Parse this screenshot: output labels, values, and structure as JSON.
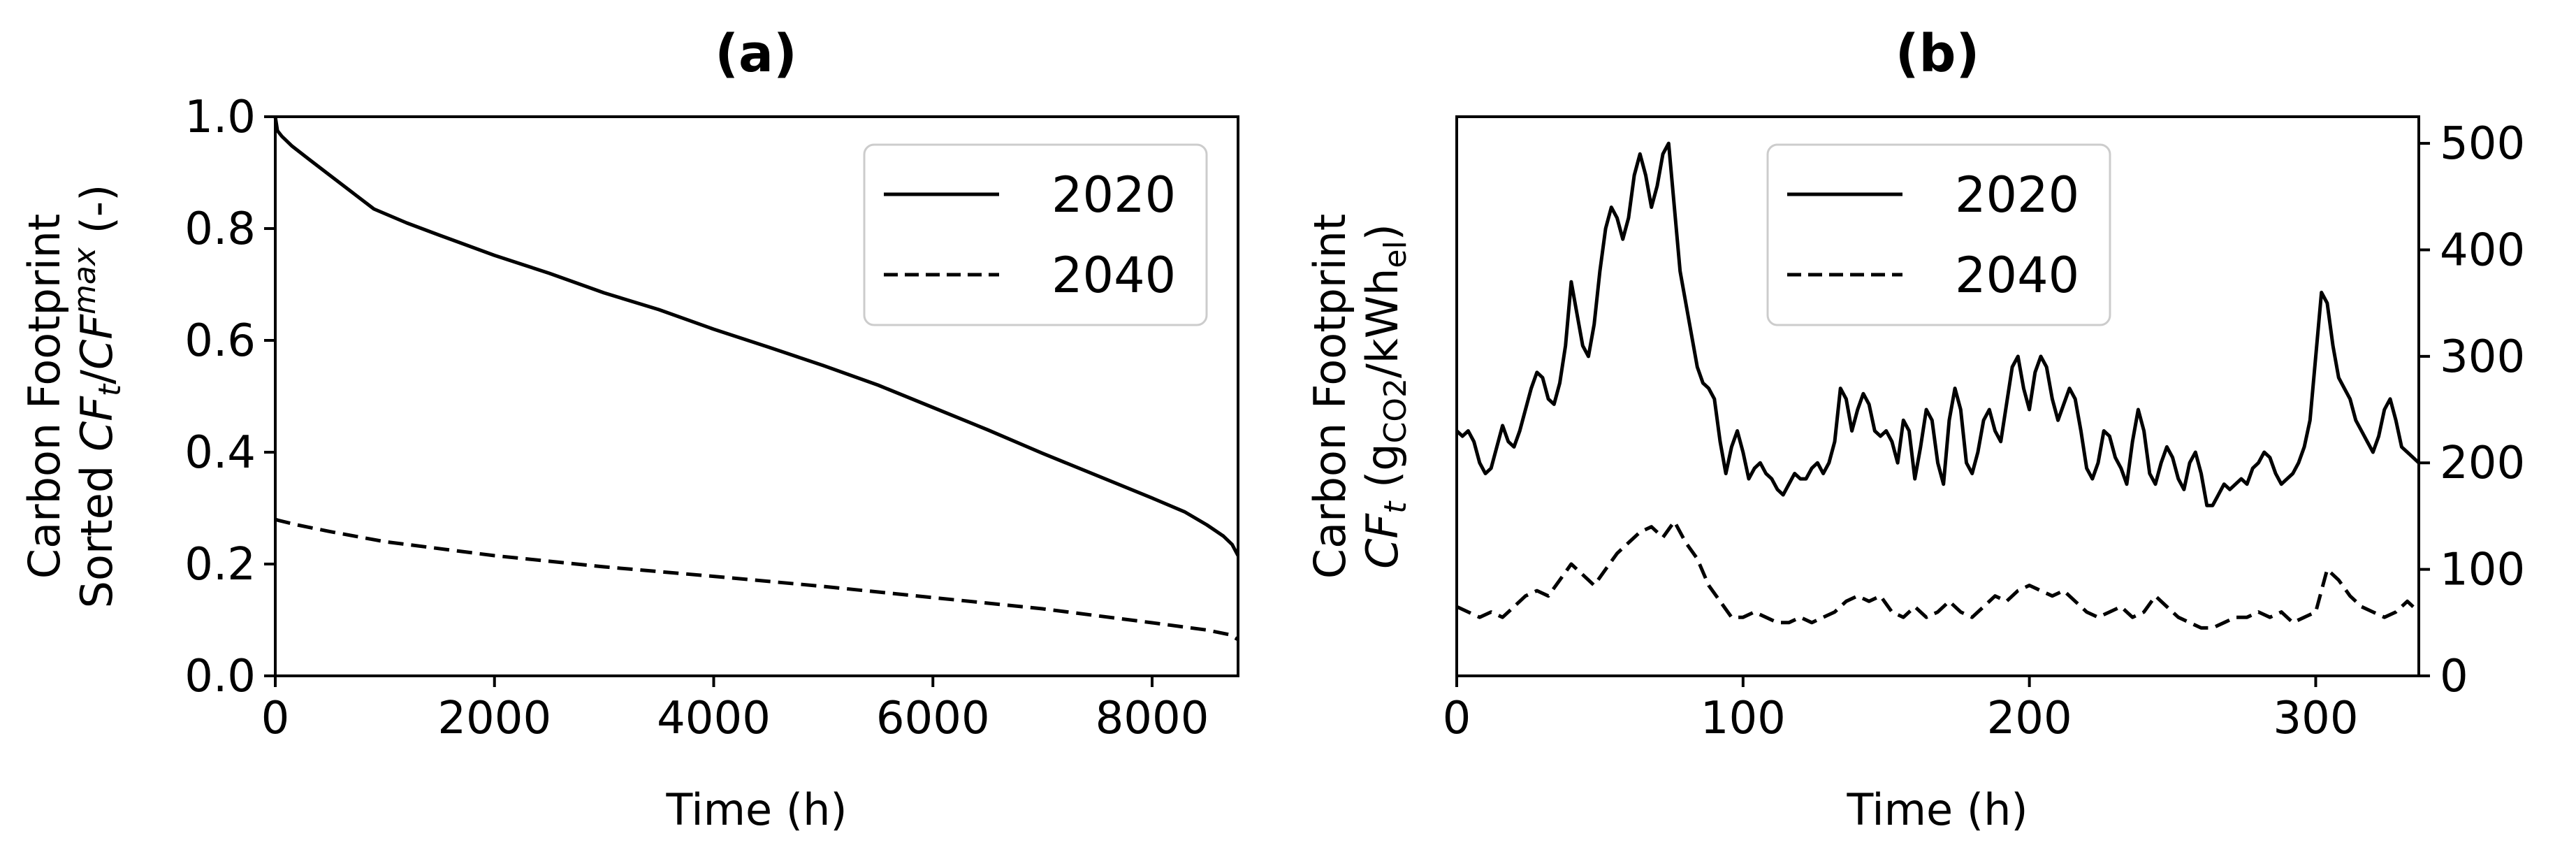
{
  "chart_data": [
    {
      "type": "line",
      "title": "(a)",
      "xlabel": "Time (h)",
      "ylabel_line1": "Carbon Footprint",
      "ylabel_line2": {
        "prefix": "Sorted ",
        "main1": "CF",
        "sub": "t",
        "sep": "/",
        "main2": "CF",
        "sup": "max",
        "suffix": " (-)"
      },
      "xlim": [
        0,
        8784
      ],
      "ylim": [
        0,
        1.0
      ],
      "xticks": [
        0,
        2000,
        4000,
        6000,
        8000
      ],
      "xtick_labels": [
        "0",
        "2000",
        "4000",
        "6000",
        "8000"
      ],
      "yticks": [
        0.0,
        0.2,
        0.4,
        0.6,
        0.8,
        1.0
      ],
      "ytick_labels": [
        "0.0",
        "0.2",
        "0.4",
        "0.6",
        "0.8",
        "1.0"
      ],
      "grid": false,
      "legend_position": "top-right",
      "series": [
        {
          "name": "2020",
          "style": "solid",
          "x": [
            0,
            20,
            60,
            150,
            300,
            500,
            700,
            900,
            1200,
            1500,
            2000,
            2500,
            3000,
            3500,
            4000,
            4500,
            5000,
            5500,
            6000,
            6500,
            7000,
            7500,
            8000,
            8300,
            8500,
            8650,
            8730,
            8784
          ],
          "y": [
            1.0,
            0.975,
            0.965,
            0.948,
            0.925,
            0.895,
            0.865,
            0.835,
            0.81,
            0.788,
            0.752,
            0.72,
            0.685,
            0.655,
            0.62,
            0.588,
            0.555,
            0.52,
            0.48,
            0.44,
            0.398,
            0.358,
            0.318,
            0.293,
            0.27,
            0.25,
            0.235,
            0.215
          ]
        },
        {
          "name": "2040",
          "style": "dashed",
          "x": [
            0,
            30,
            200,
            500,
            1000,
            2000,
            3000,
            4000,
            5000,
            6000,
            7000,
            8000,
            8500,
            8700,
            8784
          ],
          "y": [
            0.28,
            0.278,
            0.27,
            0.258,
            0.24,
            0.215,
            0.195,
            0.178,
            0.16,
            0.14,
            0.12,
            0.095,
            0.082,
            0.074,
            0.065
          ]
        }
      ]
    },
    {
      "type": "line",
      "title": "(b)",
      "xlabel": "Time (h)",
      "ylabel_line1": "Carbon Footprint",
      "ylabel_line2": {
        "main": "CF",
        "sub": "t",
        "open": " (g",
        "unit_sub": "CO2",
        "mid": "/kWh",
        "unit_sub2": "el",
        "close": ")"
      },
      "y_axis_side": "right",
      "xlim": [
        0,
        336
      ],
      "ylim": [
        0,
        525
      ],
      "xticks": [
        0,
        100,
        200,
        300
      ],
      "xtick_labels": [
        "0",
        "100",
        "200",
        "300"
      ],
      "yticks": [
        0,
        100,
        200,
        300,
        400,
        500
      ],
      "ytick_labels": [
        "0",
        "100",
        "200",
        "300",
        "400",
        "500"
      ],
      "grid": false,
      "legend_position": "top-left",
      "series": [
        {
          "name": "2020",
          "style": "solid",
          "x": [
            0,
            2,
            4,
            6,
            8,
            10,
            12,
            14,
            16,
            18,
            20,
            22,
            24,
            26,
            28,
            30,
            32,
            34,
            36,
            38,
            40,
            42,
            44,
            46,
            48,
            50,
            52,
            54,
            56,
            58,
            60,
            62,
            64,
            66,
            68,
            70,
            72,
            74,
            76,
            78,
            80,
            82,
            84,
            86,
            88,
            90,
            92,
            94,
            96,
            98,
            100,
            102,
            104,
            106,
            108,
            110,
            112,
            114,
            116,
            118,
            120,
            122,
            124,
            126,
            128,
            130,
            132,
            134,
            136,
            138,
            140,
            142,
            144,
            146,
            148,
            150,
            152,
            154,
            156,
            158,
            160,
            162,
            164,
            166,
            168,
            170,
            172,
            174,
            176,
            178,
            180,
            182,
            184,
            186,
            188,
            190,
            192,
            194,
            196,
            198,
            200,
            202,
            204,
            206,
            208,
            210,
            212,
            214,
            216,
            218,
            220,
            222,
            224,
            226,
            228,
            230,
            232,
            234,
            236,
            238,
            240,
            242,
            244,
            246,
            248,
            250,
            252,
            254,
            256,
            258,
            260,
            262,
            264,
            266,
            268,
            270,
            272,
            274,
            276,
            278,
            280,
            282,
            284,
            286,
            288,
            290,
            292,
            294,
            296,
            298,
            300,
            302,
            304,
            306,
            308,
            310,
            312,
            314,
            316,
            318,
            320,
            322,
            324,
            326,
            328,
            330,
            332,
            334,
            336
          ],
          "y": [
            230,
            225,
            230,
            220,
            200,
            190,
            195,
            215,
            235,
            220,
            215,
            230,
            250,
            270,
            285,
            280,
            260,
            255,
            275,
            310,
            370,
            340,
            310,
            300,
            330,
            380,
            420,
            440,
            430,
            410,
            430,
            470,
            490,
            470,
            440,
            460,
            490,
            500,
            440,
            380,
            350,
            320,
            290,
            275,
            270,
            260,
            220,
            190,
            215,
            230,
            210,
            185,
            195,
            200,
            190,
            185,
            175,
            170,
            180,
            190,
            185,
            185,
            195,
            200,
            190,
            200,
            220,
            270,
            260,
            230,
            250,
            265,
            255,
            230,
            225,
            230,
            220,
            200,
            240,
            230,
            185,
            215,
            250,
            240,
            200,
            180,
            240,
            270,
            250,
            200,
            190,
            210,
            240,
            250,
            230,
            220,
            255,
            290,
            300,
            270,
            250,
            285,
            300,
            290,
            260,
            240,
            255,
            270,
            260,
            230,
            195,
            185,
            200,
            230,
            225,
            205,
            195,
            180,
            220,
            250,
            230,
            190,
            180,
            200,
            215,
            205,
            185,
            175,
            200,
            210,
            190,
            160,
            160,
            170,
            180,
            175,
            180,
            185,
            180,
            195,
            200,
            210,
            205,
            190,
            180,
            185,
            190,
            200,
            215,
            240,
            300,
            360,
            350,
            310,
            280,
            270,
            260,
            240,
            230,
            220,
            210,
            225,
            250,
            260,
            240,
            215,
            210,
            205,
            200
          ]
        },
        {
          "name": "2040",
          "style": "dashed",
          "x": [
            0,
            4,
            8,
            12,
            16,
            20,
            24,
            28,
            32,
            36,
            40,
            44,
            48,
            52,
            56,
            60,
            64,
            68,
            72,
            76,
            80,
            84,
            88,
            92,
            96,
            100,
            104,
            108,
            112,
            116,
            120,
            124,
            128,
            132,
            136,
            140,
            144,
            148,
            152,
            156,
            160,
            164,
            168,
            172,
            176,
            180,
            184,
            188,
            192,
            196,
            200,
            204,
            208,
            212,
            216,
            220,
            224,
            228,
            232,
            236,
            240,
            244,
            248,
            252,
            256,
            260,
            264,
            268,
            272,
            276,
            280,
            284,
            288,
            292,
            296,
            300,
            304,
            308,
            312,
            316,
            320,
            324,
            328,
            332,
            336
          ],
          "y": [
            65,
            60,
            55,
            60,
            55,
            65,
            75,
            80,
            75,
            90,
            105,
            95,
            85,
            100,
            115,
            125,
            135,
            140,
            130,
            145,
            125,
            110,
            85,
            70,
            55,
            55,
            60,
            55,
            50,
            50,
            55,
            50,
            55,
            60,
            70,
            75,
            70,
            75,
            60,
            55,
            65,
            55,
            60,
            70,
            60,
            55,
            65,
            75,
            70,
            80,
            85,
            80,
            75,
            80,
            70,
            60,
            55,
            60,
            65,
            55,
            60,
            75,
            65,
            55,
            50,
            45,
            45,
            50,
            55,
            55,
            60,
            55,
            60,
            50,
            55,
            60,
            100,
            90,
            75,
            65,
            60,
            55,
            60,
            70,
            60
          ]
        }
      ]
    }
  ]
}
